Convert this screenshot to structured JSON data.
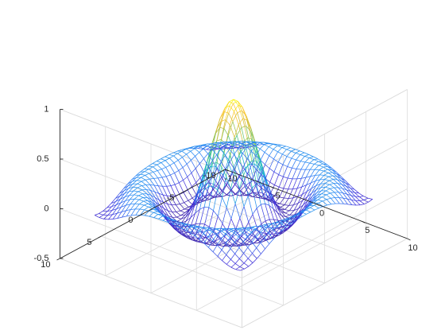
{
  "figure": {
    "background": "#ffffff",
    "axis_color": "#262626",
    "grid_color": "#dcdcdc"
  },
  "chart_data": {
    "type": "surface-mesh",
    "function": "z = sin(r)/r, r = sqrt(x^2 + y^2)",
    "title": "",
    "xlabel": "",
    "ylabel": "",
    "zlabel": "",
    "xlim": [
      -10,
      10
    ],
    "ylim": [
      -10,
      10
    ],
    "zlim": [
      -0.5,
      1
    ],
    "x": [
      -8,
      -7.5,
      -7,
      -6.5,
      -6,
      -5.5,
      -5,
      -4.5,
      -4,
      -3.5,
      -3,
      -2.5,
      -2,
      -1.5,
      -1,
      -0.5,
      0,
      0.5,
      1,
      1.5,
      2,
      2.5,
      3,
      3.5,
      4,
      4.5,
      5,
      5.5,
      6,
      6.5,
      7,
      7.5,
      8
    ],
    "y": [
      -8,
      -7.5,
      -7,
      -6.5,
      -6,
      -5.5,
      -5,
      -4.5,
      -4,
      -3.5,
      -3,
      -2.5,
      -2,
      -1.5,
      -1,
      -0.5,
      0,
      0.5,
      1,
      1.5,
      2,
      2.5,
      3,
      3.5,
      4,
      4.5,
      5,
      5.5,
      6,
      6.5,
      7,
      7.5,
      8
    ],
    "grid": true,
    "colormap": "parula",
    "colormap_stops": [
      "#3e26a8",
      "#4435dc",
      "#2d86f6",
      "#15b1d4",
      "#2ac0a0",
      "#76c866",
      "#c5bc3a",
      "#fac337",
      "#f9fb0e"
    ],
    "x_tick_labels": [
      "-10",
      "-5",
      "0",
      "5",
      "10"
    ],
    "y_tick_labels": [
      "-10",
      "-5",
      "0",
      "5",
      "10"
    ],
    "z_tick_labels": [
      "-0.5",
      "0",
      "0.5",
      "1"
    ],
    "view": {
      "azimuth_deg": -37.5,
      "elevation_deg": 30
    }
  }
}
